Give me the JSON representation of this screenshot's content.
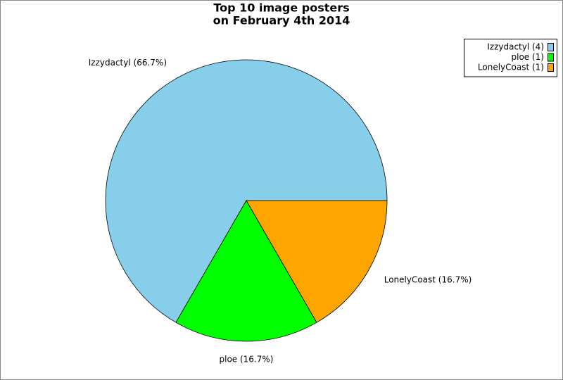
{
  "chart_data": {
    "type": "pie",
    "title": [
      "Top 10 image posters",
      "on February 4th 2014"
    ],
    "categories": [
      "Izzydactyl (4)",
      "ploe (1)",
      "LonelyCoast (1)"
    ],
    "values": [
      4,
      1,
      1
    ],
    "slice_labels": [
      "Izzydactyl (66.7%)",
      "ploe (16.7%)",
      "LonelyCoast (16.7%)"
    ],
    "colors": [
      "#87ceeb",
      "#00ff00",
      "#ffa500"
    ],
    "legend": "top-right"
  }
}
